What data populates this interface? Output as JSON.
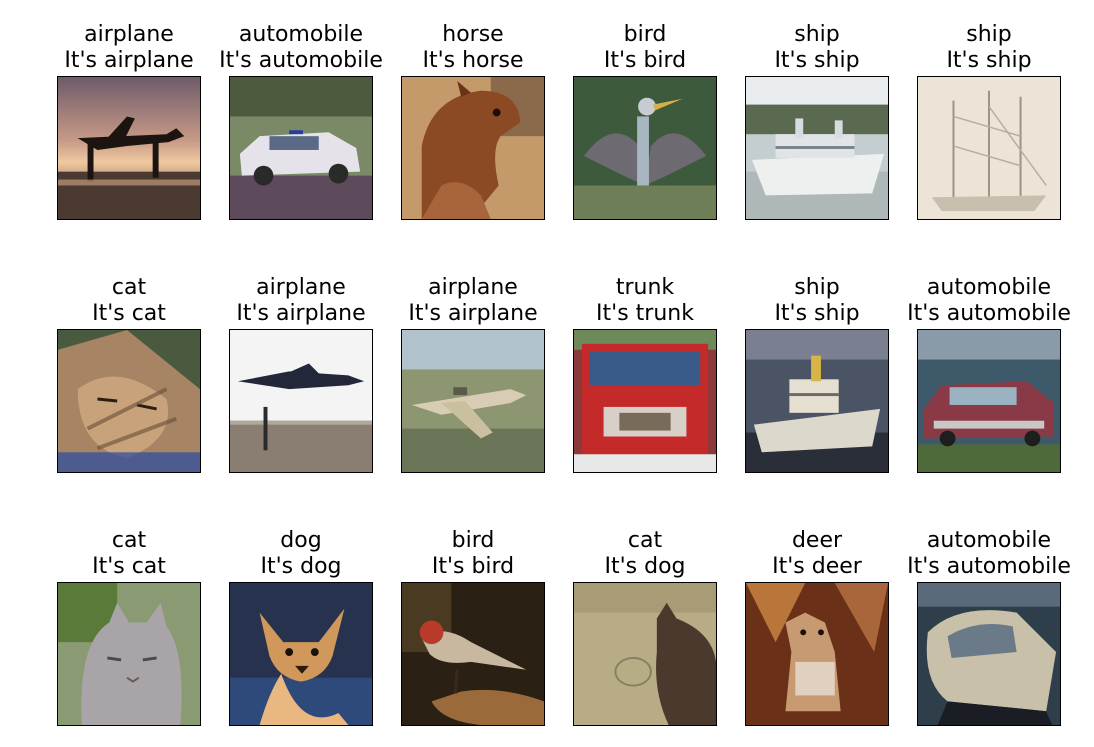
{
  "images": [
    {
      "label": "airplane",
      "caption": "It's airplane",
      "scene": "airplane-sunset"
    },
    {
      "label": "automobile",
      "caption": "It's automobile",
      "scene": "police-car"
    },
    {
      "label": "horse",
      "caption": "It's horse",
      "scene": "brown-horse"
    },
    {
      "label": "bird",
      "caption": "It's bird",
      "scene": "heron-wings"
    },
    {
      "label": "ship",
      "caption": "It's ship",
      "scene": "cruise-ship"
    },
    {
      "label": "ship",
      "caption": "It's ship",
      "scene": "sailing-ship-sketch"
    },
    {
      "label": "cat",
      "caption": "It's cat",
      "scene": "tabby-cat"
    },
    {
      "label": "airplane",
      "caption": "It's airplane",
      "scene": "jet-takeoff"
    },
    {
      "label": "airplane",
      "caption": "It's airplane",
      "scene": "light-aircraft"
    },
    {
      "label": "trunk",
      "caption": "It's trunk",
      "scene": "fire-truck"
    },
    {
      "label": "ship",
      "caption": "It's ship",
      "scene": "ferry-harbor"
    },
    {
      "label": "automobile",
      "caption": "It's automobile",
      "scene": "red-sedan"
    },
    {
      "label": "cat",
      "caption": "It's cat",
      "scene": "gray-cat"
    },
    {
      "label": "dog",
      "caption": "It's dog",
      "scene": "chihuahua"
    },
    {
      "label": "bird",
      "caption": "It's bird",
      "scene": "robin"
    },
    {
      "label": "cat",
      "caption": "It's dog",
      "scene": "cat-profile"
    },
    {
      "label": "deer",
      "caption": "It's deer",
      "scene": "deer-brown"
    },
    {
      "label": "automobile",
      "caption": "It's automobile",
      "scene": "silver-car"
    }
  ]
}
